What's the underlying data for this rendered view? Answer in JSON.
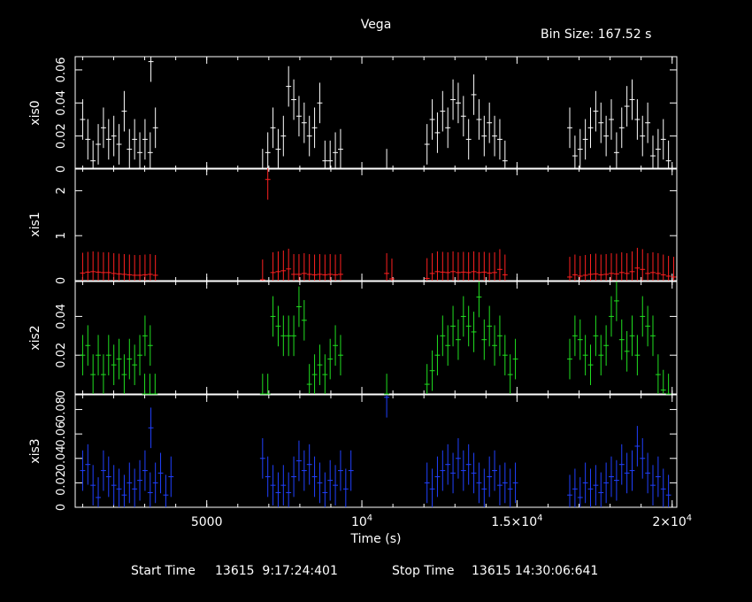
{
  "title": "Vega",
  "bin_size_text": "Bin Size: 167.52 s",
  "footer": {
    "start_label": "Start Time",
    "start_value": "13615  9:17:24:401",
    "stop_label": "Stop Time",
    "stop_value": "13615 14:30:06:641"
  },
  "x_axis": {
    "label": "Time (s)",
    "range": [
      760,
      20150
    ],
    "ticks": [
      {
        "value": 5000,
        "label": "5000",
        "sup": ""
      },
      {
        "value": 10000,
        "label": "10",
        "sup": "4"
      },
      {
        "value": 15000,
        "label": "1.5×10",
        "sup": "4"
      },
      {
        "value": 20000,
        "label": "2×10",
        "sup": "4"
      }
    ]
  },
  "chart_data": {
    "type": "scatter",
    "bin_size_s": 167.52,
    "x_errors": true,
    "panels": [
      {
        "name": "xis0",
        "color": "#ffffff",
        "ylim": [
          0,
          0.068
        ],
        "yticks": [
          {
            "v": 0,
            "label": "0"
          },
          {
            "v": 0.02,
            "label": "0.02"
          },
          {
            "v": 0.04,
            "label": "0.04"
          },
          {
            "v": 0.06,
            "label": "0.06"
          }
        ],
        "segments": [
          {
            "x0": 1000,
            "values": [
              0.03,
              0.018,
              0.005,
              0.015,
              0.025,
              0.018,
              0.02,
              0.015,
              0.035,
              0.012,
              0.018,
              0.01,
              0.018,
              0.01,
              0.025
            ]
          },
          {
            "x0": 3200,
            "values": [
              0.065
            ]
          },
          {
            "x0": 6800,
            "values": [
              0.0,
              0.01,
              0.025,
              0.012,
              0.02,
              0.05,
              0.042,
              0.032,
              0.028,
              0.02,
              0.025,
              0.04,
              0.005,
              0.005,
              0.01,
              0.012
            ]
          },
          {
            "x0": 10800,
            "values": [
              0.0
            ]
          },
          {
            "x0": 12100,
            "values": [
              0.015,
              0.03,
              0.022,
              0.035,
              0.025,
              0.042,
              0.04,
              0.032,
              0.018,
              0.045,
              0.03,
              0.02,
              0.028,
              0.02,
              0.018,
              0.005
            ]
          },
          {
            "x0": 16700,
            "values": [
              0.025,
              0.008,
              0.012,
              0.018,
              0.025,
              0.035,
              0.028,
              0.02,
              0.03,
              0.01,
              0.025,
              0.038,
              0.042,
              0.03,
              0.02,
              0.028,
              0.008,
              0.012,
              0.018,
              0.005
            ]
          }
        ]
      },
      {
        "name": "xis1",
        "color": "#ff2020",
        "ylim": [
          0,
          2.5
        ],
        "yticks": [
          {
            "v": 0,
            "label": "0"
          },
          {
            "v": 1,
            "label": "1"
          },
          {
            "v": 2,
            "label": "2"
          }
        ],
        "segments": [
          {
            "x0": 1000,
            "values": [
              0.17,
              0.19,
              0.2,
              0.19,
              0.18,
              0.18,
              0.16,
              0.15,
              0.14,
              0.13,
              0.12,
              0.12,
              0.13,
              0.14,
              0.12
            ]
          },
          {
            "x0": 6800,
            "values": [
              0.02,
              2.25,
              0.18,
              0.2,
              0.22,
              0.26,
              0.14,
              0.14,
              0.16,
              0.14,
              0.13,
              0.14,
              0.13,
              0.14,
              0.13,
              0.14
            ]
          },
          {
            "x0": 10800,
            "values": [
              0.16,
              0.04
            ]
          },
          {
            "x0": 12100,
            "values": [
              0.05,
              0.16,
              0.2,
              0.19,
              0.18,
              0.2,
              0.18,
              0.19,
              0.18,
              0.2,
              0.18,
              0.19,
              0.17,
              0.18,
              0.25,
              0.13
            ]
          },
          {
            "x0": 16700,
            "values": [
              0.08,
              0.13,
              0.1,
              0.12,
              0.14,
              0.15,
              0.13,
              0.14,
              0.16,
              0.15,
              0.18,
              0.16,
              0.2,
              0.28,
              0.25,
              0.16,
              0.18,
              0.16,
              0.13,
              0.1,
              0.08
            ]
          }
        ]
      },
      {
        "name": "xis2",
        "color": "#20e020",
        "ylim": [
          0,
          0.058
        ],
        "yticks": [
          {
            "v": 0,
            "label": "0"
          },
          {
            "v": 0.02,
            "label": "0.02"
          },
          {
            "v": 0.04,
            "label": "0.04"
          }
        ],
        "segments": [
          {
            "x0": 1000,
            "values": [
              0.02,
              0.025,
              0.01,
              0.02,
              0.01,
              0.02,
              0.015,
              0.018,
              0.01,
              0.018,
              0.015,
              0.02,
              0.03,
              0.025
            ]
          },
          {
            "x0": 3000,
            "values": [
              0.0,
              0.0,
              0.0
            ]
          },
          {
            "x0": 6800,
            "values": [
              0.0,
              0.0,
              0.04,
              0.035,
              0.03,
              0.03,
              0.03,
              0.045,
              0.038,
              0.005,
              0.01,
              0.015,
              0.01,
              0.018,
              0.025,
              0.02
            ]
          },
          {
            "x0": 10800,
            "values": [
              0.0
            ]
          },
          {
            "x0": 12100,
            "values": [
              0.005,
              0.012,
              0.02,
              0.03,
              0.025,
              0.035,
              0.028,
              0.04,
              0.035,
              0.032,
              0.05,
              0.028,
              0.035,
              0.025,
              0.03,
              0.02,
              0.01,
              0.018
            ]
          },
          {
            "x0": 16700,
            "values": [
              0.018,
              0.03,
              0.028,
              0.02,
              0.015,
              0.03,
              0.02,
              0.025,
              0.04,
              0.048,
              0.028,
              0.022,
              0.03,
              0.02,
              0.04,
              0.035,
              0.03,
              0.01,
              0.002,
              0.0
            ]
          }
        ]
      },
      {
        "name": "xis3",
        "color": "#2040ff",
        "ylim": [
          0,
          0.092
        ],
        "yticks": [
          {
            "v": 0,
            "label": "0"
          },
          {
            "v": 0.02,
            "label": "0.02"
          },
          {
            "v": 0.04,
            "label": "0.04"
          },
          {
            "v": 0.06,
            "label": "0.06"
          },
          {
            "v": 0.08,
            "label": "0.08"
          }
        ],
        "segments": [
          {
            "x0": 1000,
            "values": [
              0.03,
              0.035,
              0.018,
              0.008,
              0.03,
              0.025,
              0.018,
              0.015,
              0.01,
              0.02,
              0.015,
              0.022,
              0.03,
              0.012,
              0.02,
              0.028,
              0.01,
              0.025
            ]
          },
          {
            "x0": 3200,
            "values": [
              0.065
            ]
          },
          {
            "x0": 6800,
            "values": [
              0.04,
              0.025,
              0.018,
              0.012,
              0.018,
              0.012,
              0.025,
              0.038,
              0.03,
              0.035,
              0.025,
              0.02,
              0.012,
              0.022,
              0.018,
              0.03,
              0.015,
              0.03
            ]
          },
          {
            "x0": 10800,
            "values": [
              0.09
            ]
          },
          {
            "x0": 12100,
            "values": [
              0.02,
              0.015,
              0.025,
              0.03,
              0.035,
              0.028,
              0.04,
              0.03,
              0.035,
              0.028,
              0.02,
              0.015,
              0.025,
              0.03,
              0.018,
              0.02,
              0.015,
              0.02
            ]
          },
          {
            "x0": 16700,
            "values": [
              0.01,
              0.015,
              0.008,
              0.02,
              0.015,
              0.018,
              0.012,
              0.02,
              0.025,
              0.022,
              0.035,
              0.028,
              0.03,
              0.05,
              0.04,
              0.028,
              0.018,
              0.025,
              0.015,
              0.01
            ]
          }
        ]
      }
    ]
  }
}
